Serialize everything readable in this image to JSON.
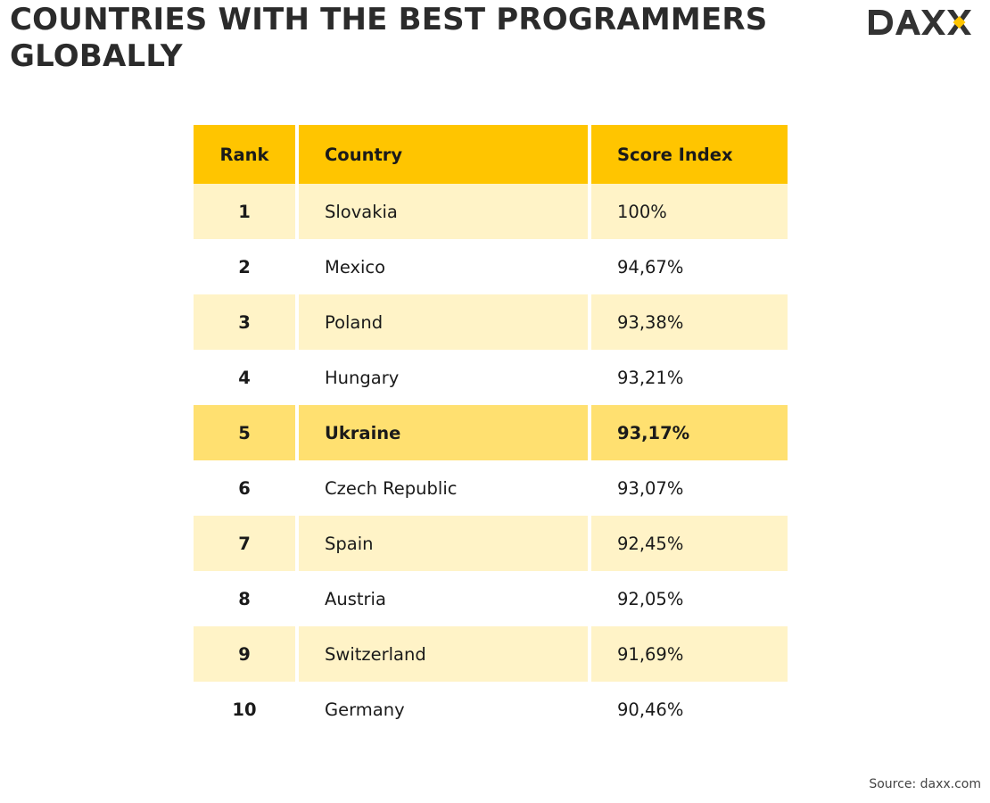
{
  "title": "COUNTRIES WITH THE BEST PROGRAMMERS GLOBALLY",
  "logo_text": "DAXX",
  "colors": {
    "header": "#ffc500",
    "alt_row": "#fff3c7",
    "highlight_row": "#ffe070",
    "logo_accent": "#ffc500"
  },
  "chart_data": {
    "type": "table",
    "columns": [
      "Rank",
      "Country",
      "Score Index"
    ],
    "rows": [
      {
        "rank": "1",
        "country": "Slovakia",
        "score": "100%"
      },
      {
        "rank": "2",
        "country": "Mexico",
        "score": "94,67%"
      },
      {
        "rank": "3",
        "country": "Poland",
        "score": "93,38%"
      },
      {
        "rank": "4",
        "country": "Hungary",
        "score": "93,21%"
      },
      {
        "rank": "5",
        "country": "Ukraine",
        "score": "93,17%",
        "highlighted": true
      },
      {
        "rank": "6",
        "country": "Czech Republic",
        "score": "93,07%"
      },
      {
        "rank": "7",
        "country": "Spain",
        "score": "92,45%"
      },
      {
        "rank": "8",
        "country": "Austria",
        "score": "92,05%"
      },
      {
        "rank": "9",
        "country": "Switzerland",
        "score": "91,69%"
      },
      {
        "rank": "10",
        "country": "Germany",
        "score": "90,46%"
      }
    ]
  },
  "source": "Source: daxx.com"
}
